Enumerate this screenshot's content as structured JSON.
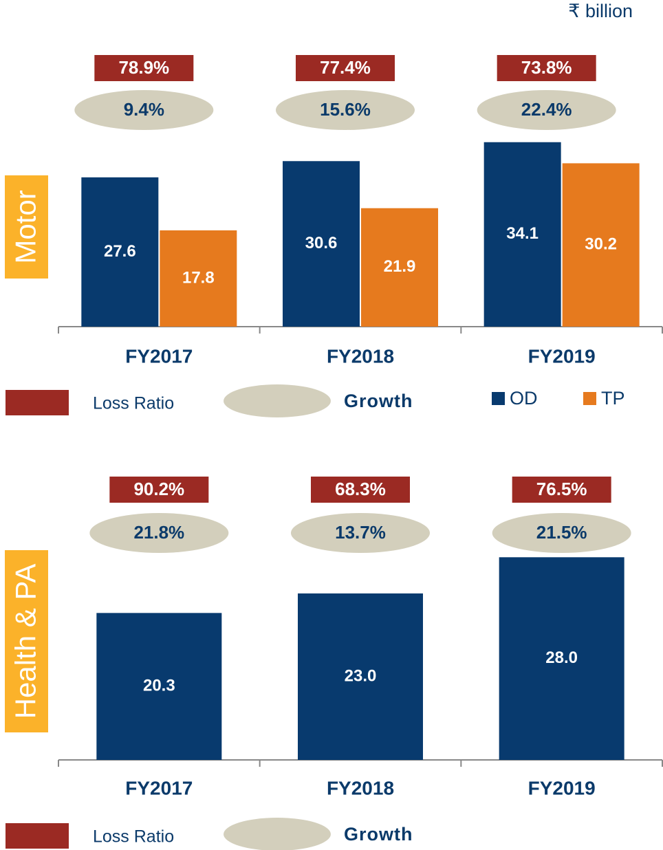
{
  "unit": "₹ billion",
  "chart_data": [
    {
      "type": "bar",
      "section": "Motor",
      "categories": [
        "FY2017",
        "FY2018",
        "FY2019"
      ],
      "series": [
        {
          "name": "OD",
          "color": "#083a6e",
          "values": [
            27.6,
            30.6,
            34.1
          ]
        },
        {
          "name": "TP",
          "color": "#e67a1e",
          "values": [
            17.8,
            21.9,
            30.2
          ]
        }
      ],
      "loss_ratio": {
        "name": "Loss Ratio",
        "color": "#9b2a23",
        "values": [
          78.9,
          77.4,
          73.8
        ],
        "value_labels": [
          "78.9%",
          "77.4%",
          "73.8%"
        ]
      },
      "growth": {
        "name": "Growth",
        "color": "#d3cfbc",
        "values": [
          9.4,
          15.6,
          22.4
        ],
        "value_labels": [
          "9.4%",
          "15.6%",
          "22.4%"
        ]
      },
      "ylim": [
        0,
        45
      ]
    },
    {
      "type": "bar",
      "section": "Health & PA",
      "categories": [
        "FY2017",
        "FY2018",
        "FY2019"
      ],
      "series": [
        {
          "color": "#083a6e",
          "values": [
            20.3,
            23.0,
            28.0
          ],
          "value_labels": [
            "20.3",
            "23.0",
            "28.0"
          ]
        }
      ],
      "loss_ratio": {
        "name": "Loss Ratio",
        "color": "#9b2a23",
        "values": [
          90.2,
          68.3,
          76.5
        ],
        "value_labels": [
          "90.2%",
          "68.3%",
          "76.5%"
        ]
      },
      "growth": {
        "name": "Growth",
        "color": "#d3cfbc",
        "values": [
          21.8,
          13.7,
          21.5
        ],
        "value_labels": [
          "21.8%",
          "13.7%",
          "21.5%"
        ]
      },
      "ylim": [
        0,
        40
      ]
    }
  ]
}
